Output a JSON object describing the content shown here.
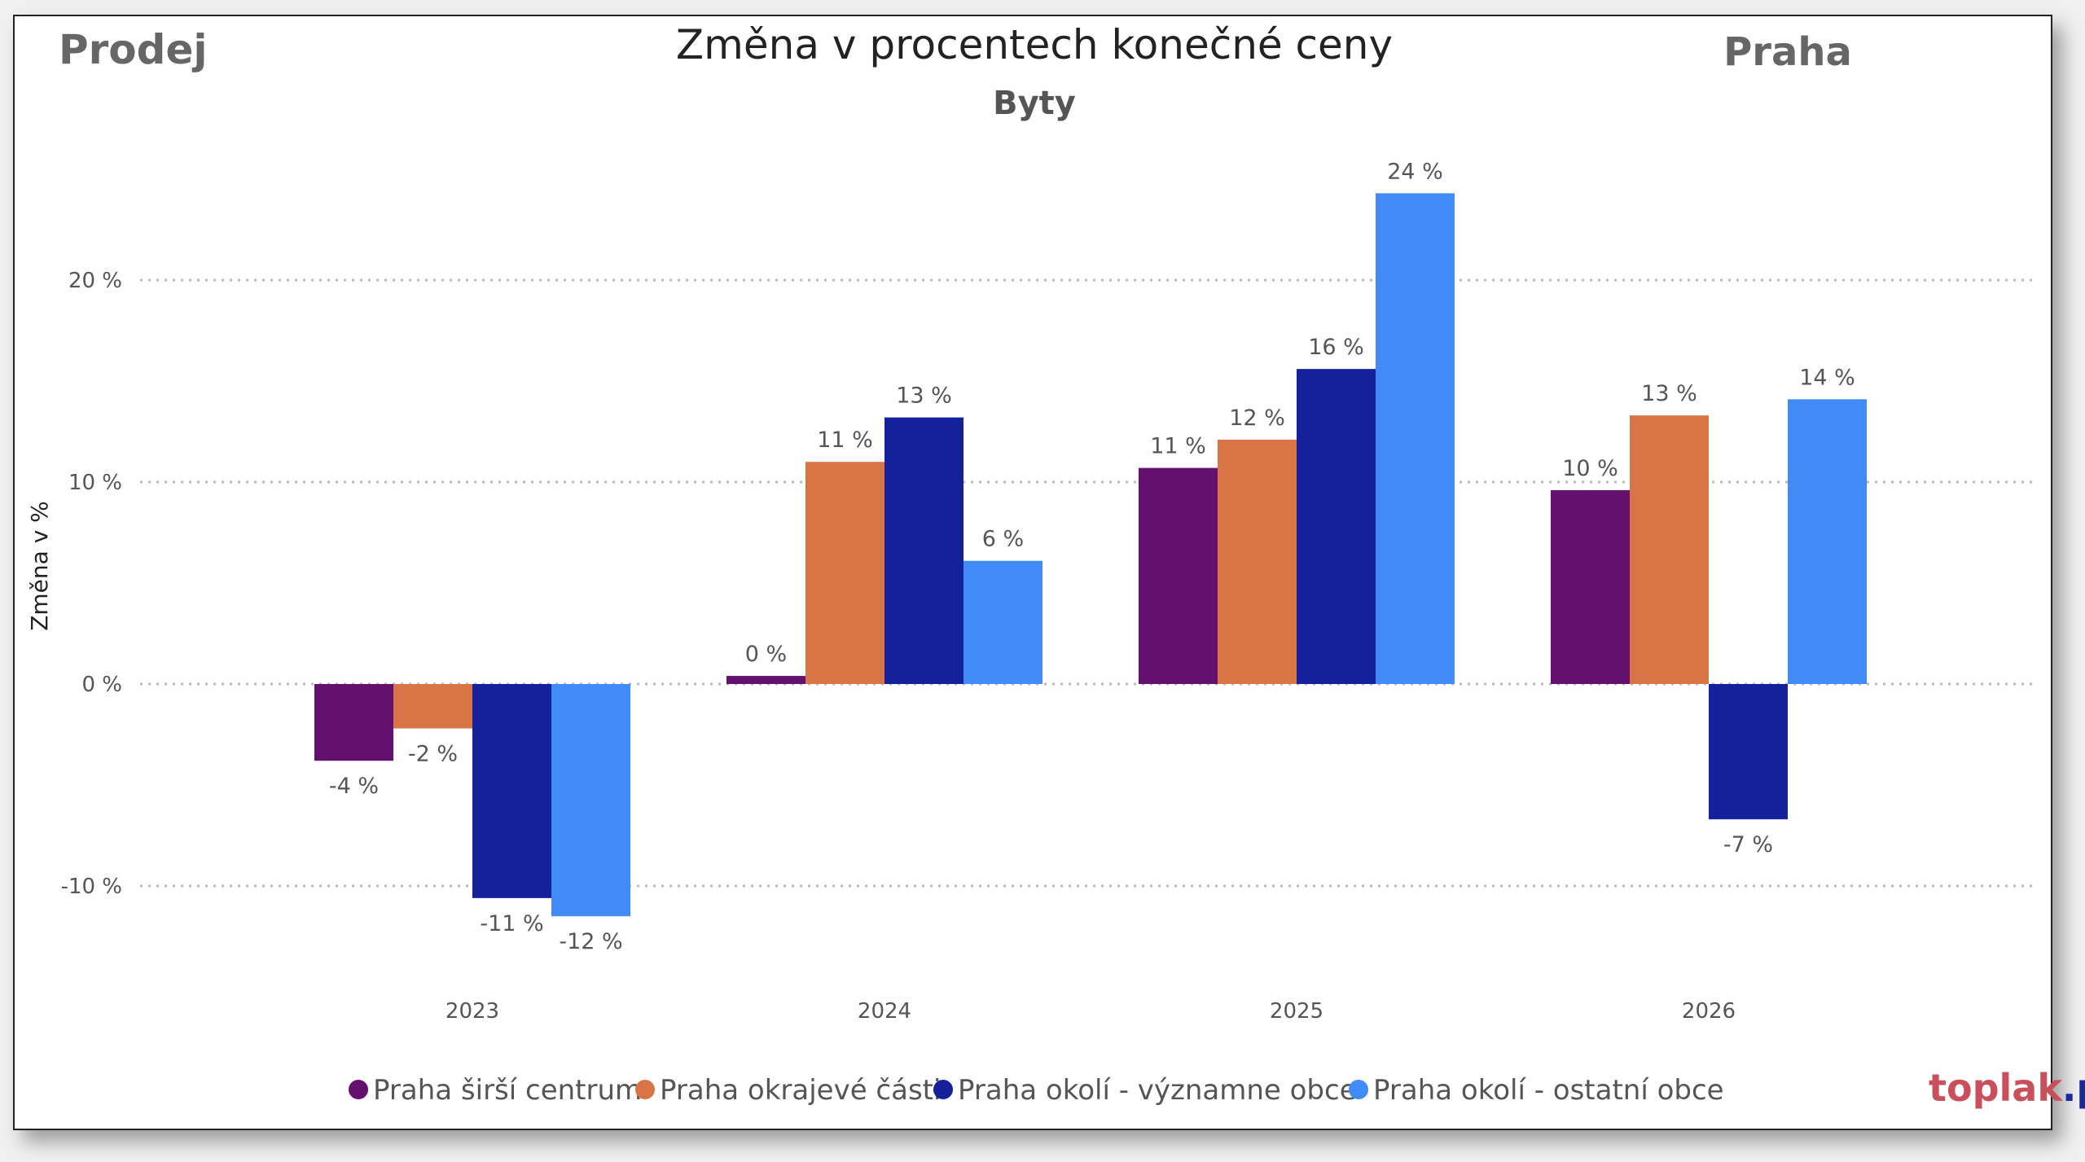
{
  "header": {
    "left": "Prodej",
    "right": "Praha",
    "logo_part1": "toplak",
    "logo_part2": ".pro"
  },
  "chart_data": {
    "type": "bar",
    "title": "Změna v procentech konečné ceny",
    "subtitle": "Byty",
    "xlabel": "",
    "ylabel": "Změna v %",
    "ylim": [
      -13,
      27
    ],
    "yticks": [
      -10,
      0,
      10,
      20
    ],
    "ytick_labels": [
      "-10 %",
      "0 %",
      "10 %",
      "20 %"
    ],
    "grid": true,
    "legend_position": "bottom",
    "categories": [
      "2023",
      "2024",
      "2025",
      "2026"
    ],
    "series": [
      {
        "name": "Praha širší centrum",
        "color": "#63106E",
        "values": [
          -3.8,
          0.4,
          10.7,
          9.6
        ],
        "labels": [
          "-4 %",
          "0 %",
          "11 %",
          "10 %"
        ]
      },
      {
        "name": "Praha okrajevé části",
        "color": "#D97446",
        "values": [
          -2.2,
          11.0,
          12.1,
          13.3
        ],
        "labels": [
          "-2 %",
          "11 %",
          "12 %",
          "13 %"
        ]
      },
      {
        "name": "Praha okolí - významne obce",
        "color": "#14219A",
        "values": [
          -10.6,
          13.2,
          15.6,
          -6.7
        ],
        "labels": [
          "-11 %",
          "13 %",
          "16 %",
          "-7 %"
        ]
      },
      {
        "name": "Praha okolí - ostatní obce",
        "color": "#408BF5",
        "values": [
          -11.5,
          6.1,
          24.3,
          14.1
        ],
        "labels": [
          "-12 %",
          "6 %",
          "24 %",
          "14 %"
        ]
      }
    ]
  }
}
